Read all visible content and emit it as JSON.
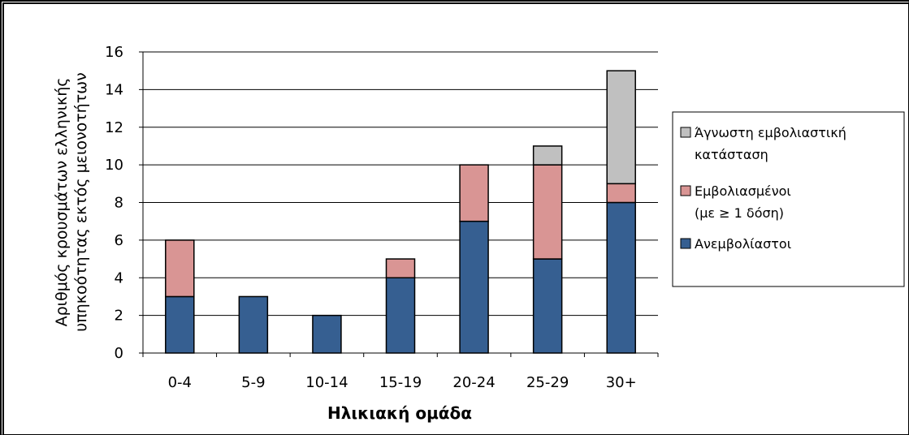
{
  "chart_data": {
    "type": "bar",
    "stacked": true,
    "categories": [
      "0-4",
      "5-9",
      "10-14",
      "15-19",
      "20-24",
      "25-29",
      "30+"
    ],
    "series": [
      {
        "name": "Ανεμβολίαστοι",
        "values": [
          3,
          3,
          2,
          4,
          7,
          5,
          8
        ],
        "color": "#365f91"
      },
      {
        "name": "Εμβολιασμένοι (με ≥ 1 δόση)",
        "values": [
          3,
          0,
          0,
          1,
          3,
          5,
          1
        ],
        "color": "#d99594"
      },
      {
        "name": "Άγνωστη εμβολιαστική κατάσταση",
        "values": [
          0,
          0,
          0,
          0,
          0,
          1,
          6
        ],
        "color": "#c0c0c0"
      }
    ],
    "legend_lines": [
      [
        "Άγνωστη εμβολιαστική",
        "κατάσταση"
      ],
      [
        "Εμβολιασμένοι",
        "(με ≥ 1 δόση)"
      ],
      [
        "Ανεμβολίαστοι"
      ]
    ],
    "legend_order": [
      2,
      1,
      0
    ],
    "ylabel_lines": [
      "Αριθμός κρουσμάτων ελληνικής",
      "υπηκοότητας εκτός μειονοτήτων"
    ],
    "xlabel": "Ηλικιακή ομάδα",
    "ylim": [
      0,
      16
    ],
    "yticks": [
      0,
      2,
      4,
      6,
      8,
      10,
      12,
      14,
      16
    ],
    "grid": true,
    "legend_position": "right"
  }
}
